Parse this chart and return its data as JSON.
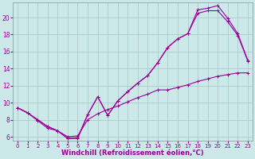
{
  "background_color": "#cde8e8",
  "grid_color": "#aacccc",
  "line_color": "#990099",
  "line_width": 0.8,
  "marker_size": 3,
  "xlabel": "Windchill (Refroidissement éolien,°C)",
  "xlabel_fontsize": 6,
  "xtick_fontsize": 5,
  "ytick_fontsize": 5.5,
  "xlim": [
    -0.5,
    23.5
  ],
  "ylim": [
    5.5,
    21.8
  ],
  "yticks": [
    6,
    8,
    10,
    12,
    14,
    16,
    18,
    20
  ],
  "xticks": [
    0,
    1,
    2,
    3,
    4,
    5,
    6,
    7,
    8,
    9,
    10,
    11,
    12,
    13,
    14,
    15,
    16,
    17,
    18,
    19,
    20,
    21,
    22,
    23
  ],
  "curve1_x": [
    0,
    1,
    2,
    3,
    4,
    5,
    6,
    7,
    8,
    9,
    10,
    11,
    12,
    13,
    14,
    15,
    16,
    17,
    18,
    19,
    20,
    21,
    22,
    23
  ],
  "curve1_y": [
    9.4,
    8.8,
    8.0,
    7.2,
    6.7,
    5.8,
    5.8,
    8.6,
    10.7,
    8.5,
    10.2,
    11.3,
    12.3,
    13.2,
    14.7,
    16.5,
    17.5,
    18.1,
    20.9,
    21.1,
    21.4,
    19.9,
    18.1,
    15.0
  ],
  "curve2_x": [
    0,
    1,
    2,
    3,
    4,
    5,
    6,
    7,
    8,
    9,
    10,
    11,
    12,
    13,
    14,
    15,
    16,
    17,
    18,
    19,
    20,
    21,
    22,
    23
  ],
  "curve2_y": [
    9.4,
    8.8,
    8.0,
    7.2,
    6.7,
    5.8,
    5.9,
    8.6,
    10.7,
    8.5,
    10.2,
    11.3,
    12.3,
    13.2,
    14.7,
    16.5,
    17.5,
    18.1,
    20.5,
    20.8,
    20.8,
    19.5,
    17.9,
    14.9
  ],
  "curve3_x": [
    0,
    1,
    2,
    3,
    4,
    5,
    6,
    7,
    8,
    9,
    10,
    11,
    12,
    13,
    14,
    15,
    16,
    17,
    18,
    19,
    20,
    21,
    22,
    23
  ],
  "curve3_y": [
    9.4,
    8.8,
    7.9,
    7.0,
    6.7,
    6.0,
    6.1,
    8.0,
    8.7,
    9.2,
    9.6,
    10.1,
    10.6,
    11.0,
    11.5,
    11.5,
    11.8,
    12.1,
    12.5,
    12.8,
    13.1,
    13.3,
    13.5,
    13.5
  ]
}
